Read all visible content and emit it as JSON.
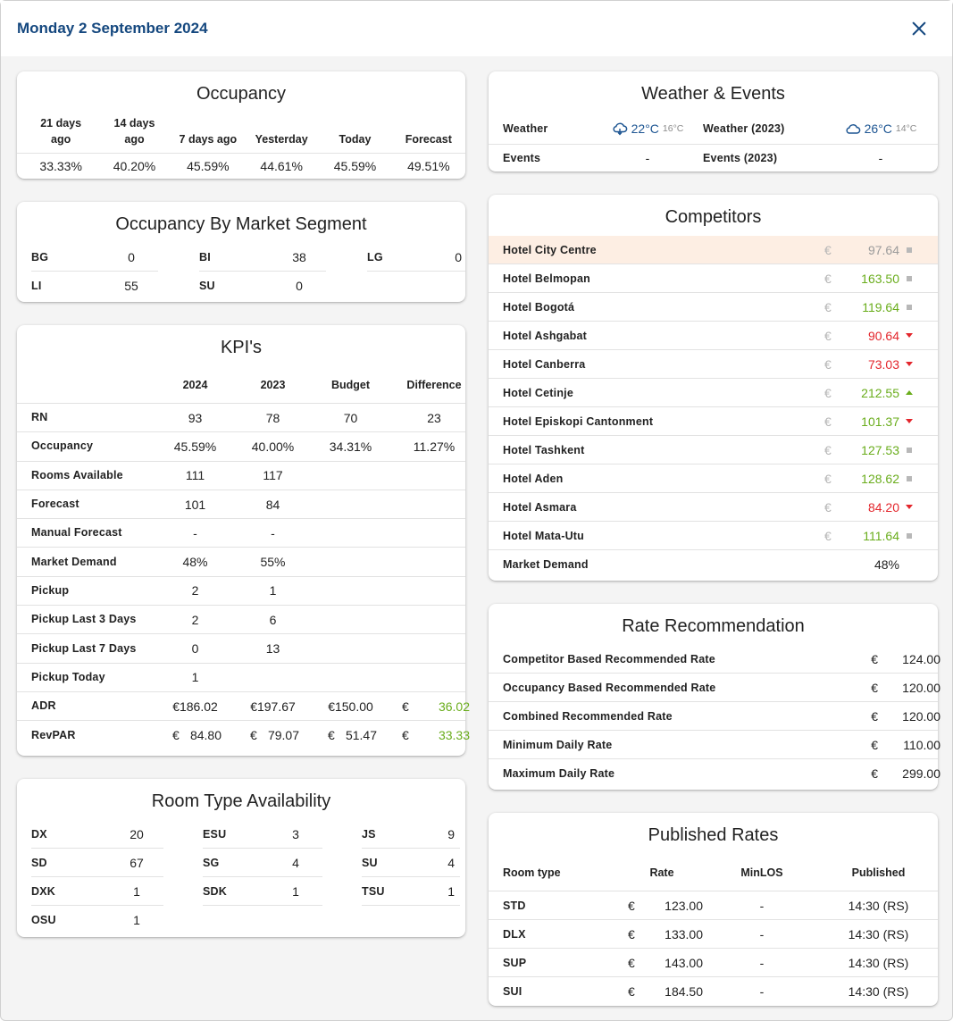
{
  "header": {
    "title": "Monday 2 September 2024"
  },
  "occupancy": {
    "title": "Occupancy",
    "columns": [
      "21 days ago",
      "14 days ago",
      "7 days ago",
      "Yesterday",
      "Today",
      "Forecast"
    ],
    "values": [
      "33.33%",
      "40.20%",
      "45.59%",
      "44.61%",
      "45.59%",
      "49.51%"
    ]
  },
  "segments": {
    "title": "Occupancy By Market Segment",
    "items": [
      {
        "label": "BG",
        "value": "0"
      },
      {
        "label": "BI",
        "value": "38"
      },
      {
        "label": "LG",
        "value": "0"
      },
      {
        "label": "LI",
        "value": "55"
      },
      {
        "label": "SU",
        "value": "0"
      }
    ]
  },
  "kpi": {
    "title": "KPI's",
    "columns": [
      "2024",
      "2023",
      "Budget",
      "Difference"
    ],
    "rows": [
      {
        "label": "RN",
        "v2024": "93",
        "v2023": "78",
        "budget": "70",
        "diff": "23"
      },
      {
        "label": "Occupancy",
        "v2024": "45.59%",
        "v2023": "40.00%",
        "budget": "34.31%",
        "diff": "11.27%"
      },
      {
        "label": "Rooms Available",
        "v2024": "111",
        "v2023": "117",
        "budget": "",
        "diff": ""
      },
      {
        "label": "Forecast",
        "v2024": "101",
        "v2023": "84",
        "budget": "",
        "diff": ""
      },
      {
        "label": "Manual Forecast",
        "v2024": "-",
        "v2023": "-",
        "budget": "",
        "diff": ""
      },
      {
        "label": "Market Demand",
        "v2024": "48%",
        "v2023": "55%",
        "budget": "",
        "diff": ""
      },
      {
        "label": "Pickup",
        "v2024": "2",
        "v2023": "1",
        "budget": "",
        "diff": ""
      },
      {
        "label": "Pickup Last 3 Days",
        "v2024": "2",
        "v2023": "6",
        "budget": "",
        "diff": ""
      },
      {
        "label": "Pickup Last 7 Days",
        "v2024": "0",
        "v2023": "13",
        "budget": "",
        "diff": ""
      },
      {
        "label": "Pickup Today",
        "v2024": "1",
        "v2023": "",
        "budget": "",
        "diff": ""
      }
    ],
    "adr": {
      "label": "ADR",
      "v2024": "€186.02",
      "v2023": "€197.67",
      "budget": "€150.00",
      "diff_currency": "€",
      "diff": "36.02"
    },
    "revpar": {
      "label": "RevPAR",
      "currency": "€",
      "v2024": "84.80",
      "v2023": "79.07",
      "budget": "51.47",
      "diff": "33.33"
    }
  },
  "room_types": {
    "title": "Room Type Availability",
    "items": [
      {
        "label": "DX",
        "value": "20"
      },
      {
        "label": "ESU",
        "value": "3"
      },
      {
        "label": "JS",
        "value": "9"
      },
      {
        "label": "SD",
        "value": "67"
      },
      {
        "label": "SG",
        "value": "4"
      },
      {
        "label": "SU",
        "value": "4"
      },
      {
        "label": "DXK",
        "value": "1"
      },
      {
        "label": "SDK",
        "value": "1"
      },
      {
        "label": "TSU",
        "value": "1"
      },
      {
        "label": "OSU",
        "value": "1"
      }
    ]
  },
  "weather": {
    "title": "Weather & Events",
    "weather_label": "Weather",
    "weather_temp": "22°C",
    "weather_low": "16°C",
    "weather_icon": "cloud-rain-icon",
    "weather_prev_label": "Weather (2023)",
    "weather_prev_temp": "26°C",
    "weather_prev_low": "14°C",
    "weather_prev_icon": "cloud-icon",
    "events_label": "Events",
    "events_value": "-",
    "events_prev_label": "Events (2023)",
    "events_prev_value": "-",
    "temp_color": "#1d5592"
  },
  "competitors": {
    "title": "Competitors",
    "currency": "€",
    "rows": [
      {
        "name": "Hotel City Centre",
        "rate": "97.64",
        "trend": "same",
        "color": "grey",
        "highlight": true
      },
      {
        "name": "Hotel Belmopan",
        "rate": "163.50",
        "trend": "same",
        "color": "green"
      },
      {
        "name": "Hotel Bogotá",
        "rate": "119.64",
        "trend": "same",
        "color": "green"
      },
      {
        "name": "Hotel Ashgabat",
        "rate": "90.64",
        "trend": "down",
        "color": "red"
      },
      {
        "name": "Hotel Canberra",
        "rate": "73.03",
        "trend": "down",
        "color": "red"
      },
      {
        "name": "Hotel Cetinje",
        "rate": "212.55",
        "trend": "up",
        "color": "green"
      },
      {
        "name": "Hotel Episkopi Cantonment",
        "rate": "101.37",
        "trend": "down",
        "color": "green"
      },
      {
        "name": "Hotel Tashkent",
        "rate": "127.53",
        "trend": "same",
        "color": "green"
      },
      {
        "name": "Hotel Aden",
        "rate": "128.62",
        "trend": "same",
        "color": "green"
      },
      {
        "name": "Hotel Asmara",
        "rate": "84.20",
        "trend": "down",
        "color": "red"
      },
      {
        "name": "Hotel Mata-Utu",
        "rate": "111.64",
        "trend": "same",
        "color": "green"
      }
    ],
    "market_demand_label": "Market Demand",
    "market_demand_value": "48%",
    "colors": {
      "green": "#6aad1c",
      "red": "#e3262c",
      "grey": "#9b9b9b",
      "highlight": "#fdeee3"
    }
  },
  "rate_recommendation": {
    "title": "Rate Recommendation",
    "currency": "€",
    "rows": [
      {
        "label": "Competitor Based Recommended Rate",
        "value": "124.00"
      },
      {
        "label": "Occupancy Based Recommended Rate",
        "value": "120.00"
      },
      {
        "label": "Combined Recommended Rate",
        "value": "120.00"
      },
      {
        "label": "Minimum Daily Rate",
        "value": "110.00"
      },
      {
        "label": "Maximum Daily Rate",
        "value": "299.00"
      }
    ]
  },
  "published_rates": {
    "title": "Published Rates",
    "columns": [
      "Room type",
      "Rate",
      "MinLOS",
      "Published"
    ],
    "currency": "€",
    "rows": [
      {
        "type": "STD",
        "rate": "123.00",
        "minlos": "-",
        "published": "14:30 (RS)"
      },
      {
        "type": "DLX",
        "rate": "133.00",
        "minlos": "-",
        "published": "14:30 (RS)"
      },
      {
        "type": "SUP",
        "rate": "143.00",
        "minlos": "-",
        "published": "14:30 (RS)"
      },
      {
        "type": "SUI",
        "rate": "184.50",
        "minlos": "-",
        "published": "14:30 (RS)"
      }
    ]
  }
}
